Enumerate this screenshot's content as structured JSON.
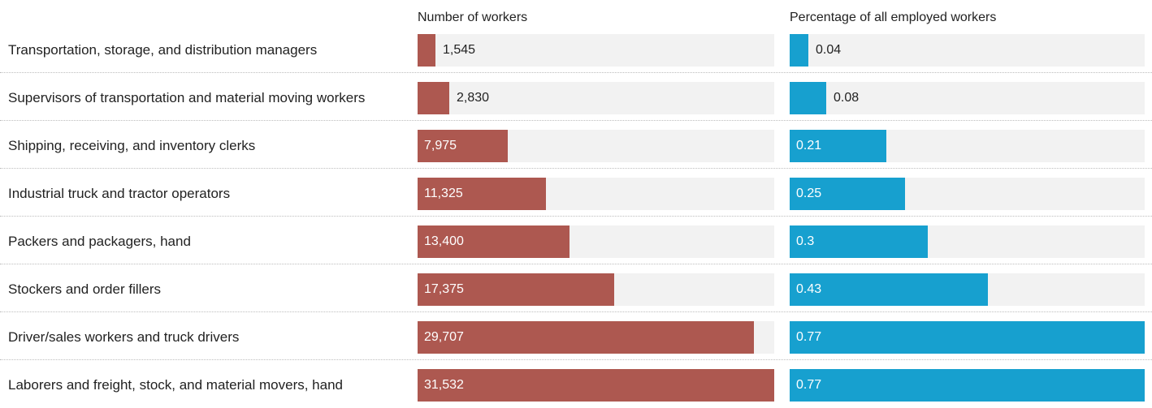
{
  "chart_data": {
    "type": "bar",
    "orientation": "horizontal",
    "categories": [
      "Transportation, storage, and distribution managers",
      "Supervisors of transportation and material moving workers",
      "Shipping, receiving, and inventory clerks",
      "Industrial truck and tractor operators",
      "Packers and packagers, hand",
      "Stockers and order fillers",
      "Driver/sales workers and truck drivers",
      "Laborers and freight, stock, and material movers, hand"
    ],
    "series": [
      {
        "name": "Number of workers",
        "values": [
          1545,
          2830,
          7975,
          11325,
          13400,
          17375,
          29707,
          31532
        ],
        "labels": [
          "1,545",
          "2,830",
          "7,975",
          "11,325",
          "13,400",
          "17,375",
          "29,707",
          "31,532"
        ],
        "xlim": [
          0,
          31532
        ],
        "color": "#ad5850"
      },
      {
        "name": "Percentage of all employed workers",
        "values": [
          0.04,
          0.08,
          0.21,
          0.25,
          0.3,
          0.43,
          0.77,
          0.77
        ],
        "labels": [
          "0.04",
          "0.08",
          "0.21",
          "0.25",
          "0.3",
          "0.43",
          "0.77",
          "0.77"
        ],
        "xlim": [
          0,
          0.77
        ],
        "color": "#17a0cf"
      }
    ],
    "track_color": "#f2f2f2",
    "grid": false,
    "legend": "none"
  }
}
